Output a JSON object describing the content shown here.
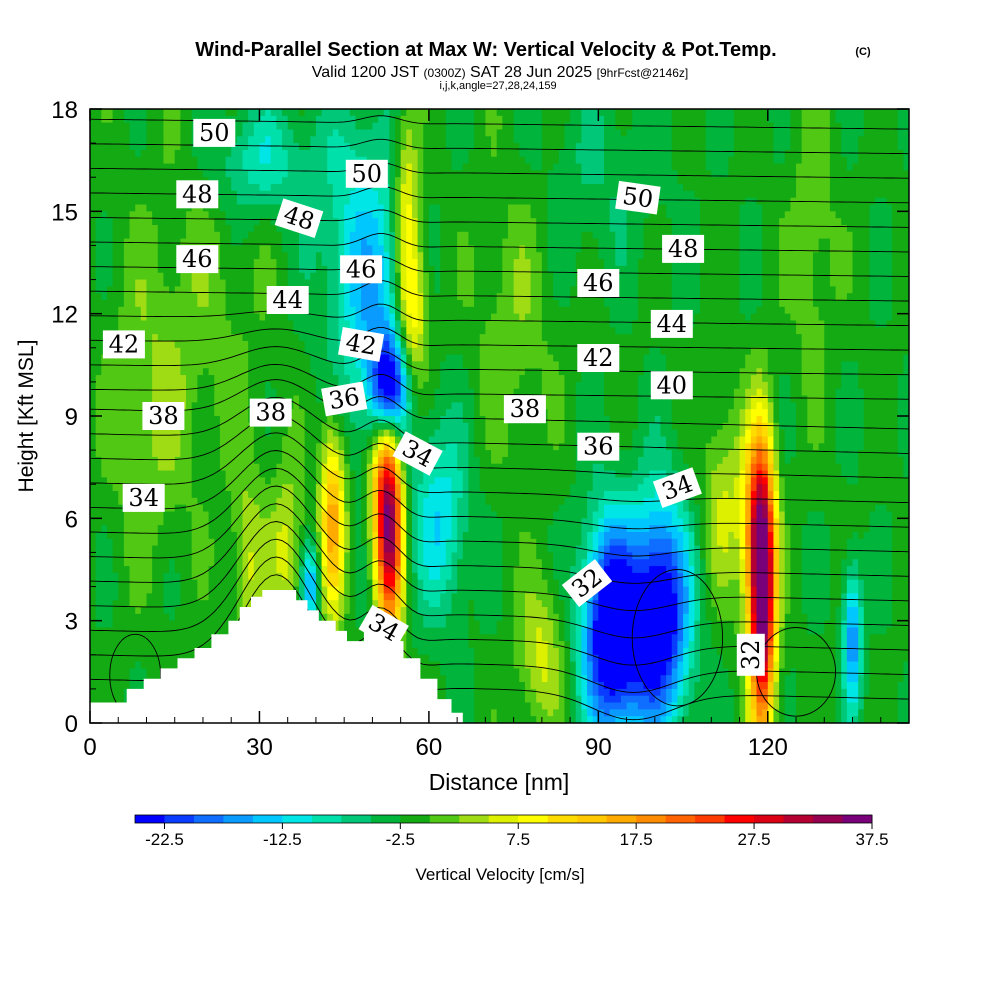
{
  "chart_data": {
    "type": "heatmap",
    "title": "Wind-Parallel Section at Max W: Vertical Velocity & Pot.Temp.",
    "title_mark": "(C)",
    "subtitle_parts": [
      "Valid 1200 JST",
      "(0300Z)",
      "SAT 28 Jun 2025",
      "[9hrFcst@2146z]"
    ],
    "subtitle2": "i,j,k,angle=27,28,24,159",
    "xlabel": "Distance [nm]",
    "ylabel": "Height [Kft MSL]",
    "xlim": [
      0,
      145
    ],
    "ylim": [
      0,
      18
    ],
    "xticks": [
      0,
      30,
      60,
      90,
      120
    ],
    "yticks": [
      0,
      3,
      6,
      9,
      12,
      15,
      18
    ],
    "grid": false,
    "colorbar": {
      "label": "Vertical Velocity [cm/s]",
      "min": -25,
      "step": 2.5,
      "tick_labels": [
        "-22.5",
        "-12.5",
        "-2.5",
        "7.5",
        "17.5",
        "27.5",
        "37.5"
      ],
      "colors": [
        "#0000ff",
        "#0a3cff",
        "#0f6eff",
        "#0a9bff",
        "#00c8ff",
        "#00e6e6",
        "#00e0aa",
        "#00c878",
        "#00b43c",
        "#14aa14",
        "#50c814",
        "#a0dc14",
        "#dcf000",
        "#ffff00",
        "#ffdc00",
        "#ffc800",
        "#ffaa00",
        "#ff8c00",
        "#ff6400",
        "#ff3c00",
        "#ff0000",
        "#dc0014",
        "#b40032",
        "#960050",
        "#780078"
      ]
    },
    "vertical_velocity_centers": [
      {
        "x": 53,
        "y": 9.8,
        "w": -22,
        "sx": 2.2,
        "sy": 1.0
      },
      {
        "x": 52,
        "y": 11.0,
        "w": -9,
        "sx": 4.0,
        "sy": 3.0
      },
      {
        "x": 47,
        "y": 14.0,
        "w": -8,
        "sx": 5.0,
        "sy": 3.0
      },
      {
        "x": 30,
        "y": 16.5,
        "w": -8,
        "sx": 6.0,
        "sy": 1.2
      },
      {
        "x": 57,
        "y": 12.0,
        "w": 14,
        "sx": 2.0,
        "sy": 1.8
      },
      {
        "x": 56,
        "y": 15.5,
        "w": 10,
        "sx": 1.5,
        "sy": 2.0
      },
      {
        "x": 53,
        "y": 5.5,
        "w": 32,
        "sx": 1.7,
        "sy": 2.2
      },
      {
        "x": 52,
        "y": 7.2,
        "w": 14,
        "sx": 2.0,
        "sy": 1.6
      },
      {
        "x": 43,
        "y": 6.0,
        "w": 18,
        "sx": 1.6,
        "sy": 2.0
      },
      {
        "x": 35,
        "y": 5.0,
        "w": 8,
        "sx": 2.2,
        "sy": 1.8
      },
      {
        "x": 39,
        "y": 4.0,
        "w": -14,
        "sx": 1.2,
        "sy": 0.9
      },
      {
        "x": 28,
        "y": 4.5,
        "w": 7,
        "sx": 2.0,
        "sy": 2.0
      },
      {
        "x": 62,
        "y": 6.0,
        "w": -10,
        "sx": 3.5,
        "sy": 2.0
      },
      {
        "x": 92,
        "y": 3.0,
        "w": -22,
        "sx": 3.2,
        "sy": 2.2
      },
      {
        "x": 101,
        "y": 3.5,
        "w": -22,
        "sx": 3.5,
        "sy": 2.2
      },
      {
        "x": 96,
        "y": 2.0,
        "w": -10,
        "sx": 6.0,
        "sy": 2.0
      },
      {
        "x": 119,
        "y": 3.7,
        "w": 40,
        "sx": 1.6,
        "sy": 2.8
      },
      {
        "x": 118,
        "y": 6.0,
        "w": 14,
        "sx": 2.0,
        "sy": 2.0
      },
      {
        "x": 135,
        "y": 2.5,
        "w": -15,
        "sx": 1.2,
        "sy": 1.5
      },
      {
        "x": 80,
        "y": 2.0,
        "w": 8,
        "sx": 3.0,
        "sy": 1.5
      },
      {
        "x": 112,
        "y": 6.5,
        "w": 7,
        "sx": 2.5,
        "sy": 2.0
      },
      {
        "x": 75,
        "y": 12.0,
        "w": 4,
        "sx": 5.0,
        "sy": 3.0
      },
      {
        "x": 20,
        "y": 12.0,
        "w": 3,
        "sx": 8.0,
        "sy": 4.0
      },
      {
        "x": 10,
        "y": 9.0,
        "w": 4,
        "sx": 5.0,
        "sy": 3.0
      },
      {
        "x": 128,
        "y": 14.0,
        "w": 4,
        "sx": 3.0,
        "sy": 3.0
      },
      {
        "x": 90,
        "y": 16.0,
        "w": -3,
        "sx": 8.0,
        "sy": 2.0
      }
    ],
    "terrain": {
      "x": [
        0,
        6.5,
        6.5,
        9.5,
        9.5,
        12.5,
        12.5,
        15.5,
        15.5,
        18.5,
        18.5,
        21.5,
        21.5,
        24.5,
        24.5,
        26.5,
        26.5,
        28.5,
        28.5,
        30.5,
        30.5,
        36.5,
        36.5,
        38.5,
        38.5,
        40.5,
        40.5,
        43.5,
        43.5,
        45.5,
        45.5,
        48.5,
        48.5,
        51.5,
        51.5,
        55.5,
        55.5,
        58.5,
        58.5,
        61.5,
        61.5,
        64,
        64,
        66,
        66
      ],
      "y": [
        0.6,
        0.6,
        1.0,
        1.0,
        1.3,
        1.3,
        1.6,
        1.6,
        1.9,
        1.9,
        2.2,
        2.2,
        2.6,
        2.6,
        3.0,
        3.0,
        3.4,
        3.4,
        3.7,
        3.7,
        3.9,
        3.9,
        3.6,
        3.6,
        3.3,
        3.3,
        3.0,
        3.0,
        2.7,
        2.7,
        2.4,
        2.4,
        2.7,
        2.7,
        2.4,
        2.4,
        1.9,
        1.9,
        1.3,
        1.3,
        0.7,
        0.7,
        0.3,
        0.3,
        0
      ]
    },
    "theta_contour_labels": [
      {
        "value": "50",
        "x": 22,
        "y": 17.3,
        "angle": 0
      },
      {
        "value": "50",
        "x": 49,
        "y": 16.1,
        "angle": 0
      },
      {
        "value": "50",
        "x": 97,
        "y": 15.4,
        "angle": 8
      },
      {
        "value": "48",
        "x": 19,
        "y": 15.5,
        "angle": 0
      },
      {
        "value": "48",
        "x": 37,
        "y": 14.8,
        "angle": 18
      },
      {
        "value": "48",
        "x": 105,
        "y": 13.9,
        "angle": 0
      },
      {
        "value": "46",
        "x": 19,
        "y": 13.6,
        "angle": 0
      },
      {
        "value": "46",
        "x": 48,
        "y": 13.3,
        "angle": 0
      },
      {
        "value": "46",
        "x": 90,
        "y": 12.9,
        "angle": 0
      },
      {
        "value": "44",
        "x": 35,
        "y": 12.4,
        "angle": 0
      },
      {
        "value": "44",
        "x": 103,
        "y": 11.7,
        "angle": 0
      },
      {
        "value": "42",
        "x": 6,
        "y": 11.1,
        "angle": 0
      },
      {
        "value": "42",
        "x": 48,
        "y": 11.1,
        "angle": 10
      },
      {
        "value": "42",
        "x": 90,
        "y": 10.7,
        "angle": 0
      },
      {
        "value": "40",
        "x": 103,
        "y": 9.9,
        "angle": 0
      },
      {
        "value": "38",
        "x": 13,
        "y": 9.0,
        "angle": 0
      },
      {
        "value": "38",
        "x": 32,
        "y": 9.1,
        "angle": 0
      },
      {
        "value": "38",
        "x": 77,
        "y": 9.2,
        "angle": 0
      },
      {
        "value": "36",
        "x": 45,
        "y": 9.5,
        "angle": -10
      },
      {
        "value": "36",
        "x": 90,
        "y": 8.1,
        "angle": 0
      },
      {
        "value": "34",
        "x": 58,
        "y": 7.9,
        "angle": 28
      },
      {
        "value": "34",
        "x": 104,
        "y": 6.9,
        "angle": -20
      },
      {
        "value": "34",
        "x": 9.5,
        "y": 6.6,
        "angle": 0
      },
      {
        "value": "34",
        "x": 52,
        "y": 2.8,
        "angle": 30
      },
      {
        "value": "32",
        "x": 88,
        "y": 4.1,
        "angle": -38
      },
      {
        "value": "32",
        "x": 117,
        "y": 2.0,
        "angle": -90
      }
    ]
  }
}
